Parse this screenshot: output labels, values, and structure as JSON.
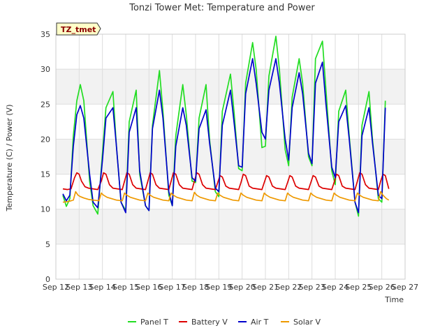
{
  "chart_data": {
    "type": "line",
    "title": "Tonzi Tower Met: Temperature and Power",
    "xlabel": "Time",
    "ylabel": "Temperature (C) / Power (V)",
    "badge": "TZ_tmet",
    "xlim": [
      12,
      27
    ],
    "ylim": [
      0,
      35
    ],
    "x_ticks": [
      {
        "value": 12,
        "label": "Sep 12"
      },
      {
        "value": 13,
        "label": "Sep 13"
      },
      {
        "value": 14,
        "label": "Sep 14"
      },
      {
        "value": 15,
        "label": "Sep 15"
      },
      {
        "value": 16,
        "label": "Sep 16"
      },
      {
        "value": 17,
        "label": "Sep 17"
      },
      {
        "value": 18,
        "label": "Sep 18"
      },
      {
        "value": 19,
        "label": "Sep 19"
      },
      {
        "value": 20,
        "label": "Sep 20"
      },
      {
        "value": 21,
        "label": "Sep 21"
      },
      {
        "value": 22,
        "label": "Sep 22"
      },
      {
        "value": 23,
        "label": "Sep 23"
      },
      {
        "value": 24,
        "label": "Sep 24"
      },
      {
        "value": 25,
        "label": "Sep 25"
      },
      {
        "value": 26,
        "label": "Sep 26"
      },
      {
        "value": 27,
        "label": "Sep 27"
      }
    ],
    "y_ticks": [
      {
        "value": 0,
        "label": "0"
      },
      {
        "value": 5,
        "label": "5"
      },
      {
        "value": 10,
        "label": "10"
      },
      {
        "value": 15,
        "label": "15"
      },
      {
        "value": 20,
        "label": "20"
      },
      {
        "value": 25,
        "label": "25"
      },
      {
        "value": 30,
        "label": "30"
      },
      {
        "value": 35,
        "label": "35"
      }
    ],
    "series": [
      {
        "name": "Panel T",
        "color": "#22dd22",
        "x": [
          12.3,
          12.45,
          12.6,
          12.75,
          12.9,
          13.05,
          13.2,
          13.45,
          13.6,
          13.8,
          14.0,
          14.15,
          14.45,
          14.6,
          14.8,
          15.0,
          15.15,
          15.45,
          15.6,
          15.85,
          16.0,
          16.15,
          16.45,
          16.6,
          16.85,
          17.0,
          17.15,
          17.45,
          17.6,
          17.85,
          18.0,
          18.15,
          18.45,
          18.6,
          18.85,
          19.0,
          19.15,
          19.5,
          19.65,
          19.85,
          20.0,
          20.15,
          20.45,
          20.6,
          20.85,
          21.0,
          21.15,
          21.45,
          21.6,
          21.85,
          22.0,
          22.15,
          22.45,
          22.6,
          22.85,
          23.0,
          23.15,
          23.45,
          23.6,
          23.85,
          24.0,
          24.15,
          24.45,
          24.6,
          24.85,
          25.0,
          25.15,
          25.45,
          25.6,
          25.85,
          26.0,
          26.15
        ],
        "y": [
          12,
          10.4,
          11.5,
          20.5,
          25.5,
          27.8,
          25.5,
          14,
          10.5,
          9.3,
          18,
          24.5,
          26.8,
          19,
          11,
          9.8,
          22.5,
          27,
          15,
          10.5,
          9.8,
          22,
          29.8,
          24,
          12,
          10.5,
          20.5,
          27.8,
          23.5,
          14,
          13.8,
          23,
          27.8,
          20,
          12.5,
          11.8,
          24,
          29.3,
          24,
          15.8,
          15.5,
          28,
          33.8,
          30,
          18.8,
          19,
          29,
          34.7,
          30,
          18.5,
          16.2,
          26,
          31.5,
          28,
          17.5,
          16.2,
          31.5,
          34,
          27,
          15.5,
          13.5,
          24,
          27,
          20.5,
          11,
          9,
          22,
          26.8,
          20,
          11.5,
          11,
          25.5
        ]
      },
      {
        "name": "Battery V",
        "color": "#dd0000",
        "x": [
          12.3,
          12.5,
          12.65,
          12.8,
          12.9,
          13.0,
          13.1,
          13.25,
          13.4,
          13.6,
          13.8,
          13.95,
          14.05,
          14.15,
          14.3,
          14.45,
          14.65,
          14.85,
          14.95,
          15.05,
          15.15,
          15.3,
          15.45,
          15.65,
          15.85,
          15.95,
          16.05,
          16.15,
          16.3,
          16.45,
          16.65,
          16.85,
          16.95,
          17.05,
          17.15,
          17.3,
          17.45,
          17.65,
          17.85,
          17.95,
          18.05,
          18.15,
          18.3,
          18.45,
          18.65,
          18.85,
          18.95,
          19.05,
          19.15,
          19.3,
          19.45,
          19.65,
          19.85,
          19.95,
          20.05,
          20.15,
          20.3,
          20.45,
          20.65,
          20.85,
          20.95,
          21.05,
          21.15,
          21.3,
          21.45,
          21.65,
          21.85,
          21.95,
          22.05,
          22.15,
          22.3,
          22.45,
          22.65,
          22.85,
          22.95,
          23.05,
          23.15,
          23.3,
          23.45,
          23.65,
          23.85,
          23.95,
          24.05,
          24.15,
          24.3,
          24.45,
          24.65,
          24.85,
          24.95,
          25.05,
          25.15,
          25.3,
          25.45,
          25.65,
          25.85,
          25.95,
          26.05,
          26.15,
          26.3
        ],
        "y": [
          12.9,
          12.8,
          12.9,
          14.5,
          15.2,
          15,
          14,
          13.2,
          13,
          12.9,
          12.8,
          14,
          15.2,
          15,
          13.5,
          13,
          12.9,
          12.8,
          14,
          15.2,
          15,
          13.5,
          13,
          12.9,
          12.8,
          14,
          15.2,
          15,
          13.5,
          13,
          12.9,
          12.8,
          14,
          15.2,
          15,
          13.5,
          13,
          12.9,
          12.8,
          14,
          15.2,
          15,
          13.5,
          13,
          12.9,
          12.8,
          13.8,
          14.8,
          14.6,
          13.3,
          13,
          12.9,
          12.8,
          13.8,
          15,
          14.8,
          13.3,
          13,
          12.9,
          12.8,
          13.8,
          14.8,
          14.6,
          13.3,
          13,
          12.9,
          12.8,
          13.8,
          14.8,
          14.6,
          13.3,
          13,
          12.9,
          12.8,
          13.8,
          14.8,
          14.6,
          13.3,
          13,
          12.9,
          12.8,
          13.8,
          15,
          14.8,
          13.3,
          13,
          12.9,
          12.8,
          14,
          15.2,
          15,
          13.5,
          13,
          12.9,
          12.8,
          14,
          15,
          14.8,
          12.9
        ]
      },
      {
        "name": "Air T",
        "color": "#0000cc",
        "x": [
          12.3,
          12.45,
          12.6,
          12.75,
          12.9,
          13.05,
          13.2,
          13.45,
          13.6,
          13.8,
          14.0,
          14.15,
          14.45,
          14.6,
          14.8,
          15.0,
          15.15,
          15.45,
          15.6,
          15.85,
          16.0,
          16.15,
          16.45,
          16.6,
          16.85,
          17.0,
          17.15,
          17.45,
          17.6,
          17.85,
          18.0,
          18.15,
          18.45,
          18.6,
          18.85,
          19.0,
          19.15,
          19.5,
          19.65,
          19.85,
          20.0,
          20.15,
          20.45,
          20.6,
          20.85,
          21.0,
          21.15,
          21.45,
          21.6,
          21.85,
          22.0,
          22.15,
          22.45,
          22.6,
          22.85,
          23.0,
          23.15,
          23.45,
          23.6,
          23.85,
          24.0,
          24.15,
          24.45,
          24.6,
          24.85,
          25.0,
          25.15,
          25.45,
          25.6,
          25.85,
          26.0,
          26.15
        ],
        "y": [
          12.2,
          11.2,
          12,
          19,
          23.5,
          24.8,
          23,
          15,
          11,
          10.2,
          17,
          23,
          24.5,
          19,
          11,
          9.5,
          21,
          24.5,
          15.5,
          10.5,
          9.8,
          21.5,
          27,
          23,
          12.5,
          10.5,
          19,
          24.5,
          22,
          14.5,
          14,
          21.5,
          24.2,
          19.5,
          13,
          12.5,
          22,
          27,
          22.5,
          16.2,
          16,
          26.5,
          31.5,
          28,
          21,
          20,
          27,
          31.5,
          28,
          20,
          17,
          24.5,
          29.5,
          26.5,
          18,
          16.5,
          28,
          31,
          25,
          16,
          14.5,
          22.5,
          24.8,
          20,
          11,
          9.5,
          20.5,
          24.5,
          19.5,
          12,
          11.5,
          24.5
        ]
      },
      {
        "name": "Solar V",
        "color": "#ee9900",
        "x": [
          12.3,
          12.55,
          12.75,
          12.85,
          12.95,
          13.05,
          13.2,
          13.4,
          13.6,
          13.85,
          13.95,
          14.05,
          14.2,
          14.4,
          14.6,
          14.85,
          14.95,
          15.05,
          15.2,
          15.4,
          15.6,
          15.85,
          15.95,
          16.05,
          16.2,
          16.4,
          16.6,
          16.85,
          16.95,
          17.05,
          17.2,
          17.4,
          17.6,
          17.85,
          17.95,
          18.05,
          18.2,
          18.4,
          18.6,
          18.85,
          18.95,
          19.05,
          19.2,
          19.4,
          19.6,
          19.85,
          19.95,
          20.05,
          20.2,
          20.4,
          20.6,
          20.85,
          20.95,
          21.05,
          21.2,
          21.4,
          21.6,
          21.85,
          21.95,
          22.05,
          22.2,
          22.4,
          22.6,
          22.85,
          22.95,
          23.05,
          23.2,
          23.4,
          23.6,
          23.85,
          23.95,
          24.05,
          24.2,
          24.4,
          24.6,
          24.85,
          24.95,
          25.05,
          25.2,
          25.4,
          25.6,
          25.85,
          25.95,
          26.05,
          26.2,
          26.3
        ],
        "y": [
          11,
          11.1,
          11.3,
          12.5,
          12,
          11.8,
          11.6,
          11.4,
          11.3,
          11.2,
          12.3,
          12,
          11.7,
          11.5,
          11.3,
          11.2,
          12.3,
          12,
          11.7,
          11.5,
          11.3,
          11.2,
          12.3,
          12,
          11.7,
          11.5,
          11.3,
          11.2,
          12.3,
          12,
          11.7,
          11.5,
          11.3,
          11.2,
          12.4,
          12,
          11.7,
          11.5,
          11.3,
          11.2,
          12.3,
          12,
          11.7,
          11.5,
          11.3,
          11.2,
          12.3,
          12,
          11.7,
          11.5,
          11.3,
          11.2,
          12.3,
          12,
          11.7,
          11.5,
          11.3,
          11.2,
          12.3,
          12,
          11.7,
          11.5,
          11.3,
          11.2,
          12.3,
          12,
          11.7,
          11.5,
          11.3,
          11.2,
          12.3,
          12,
          11.7,
          11.5,
          11.3,
          11.2,
          12.3,
          12,
          11.7,
          11.5,
          11.3,
          11.2,
          12.5,
          12,
          11.5,
          11.3
        ]
      }
    ]
  }
}
